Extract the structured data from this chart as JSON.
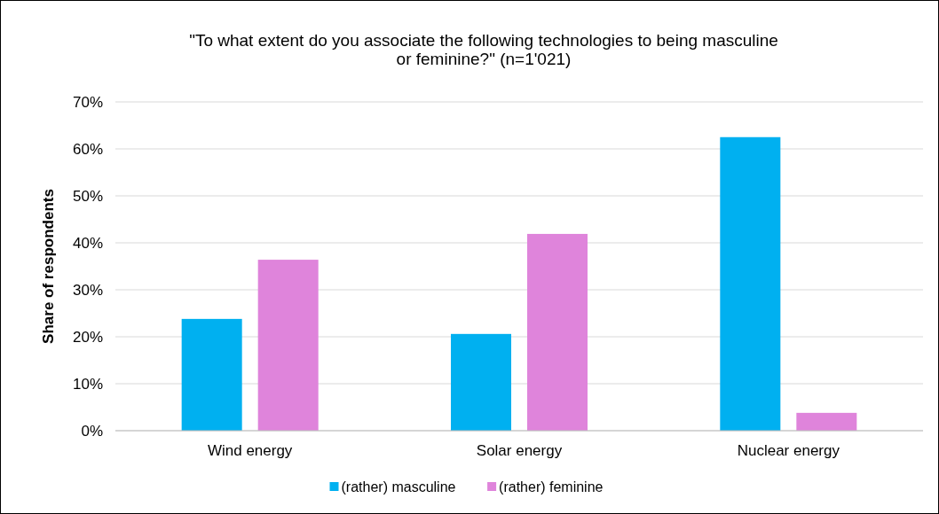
{
  "chart_data": {
    "type": "bar",
    "title": "\"To what extent do you associate the following technologies to being masculine or feminine?\" (n=1'021)",
    "ylabel": "Share of respondents",
    "categories": [
      "Wind energy",
      "Solar energy",
      "Nuclear energy"
    ],
    "series": [
      {
        "name": "(rather) masculine",
        "color": "#00b0f0",
        "values": [
          23.8,
          20.6,
          62.5
        ]
      },
      {
        "name": "(rather) feminine",
        "color": "#df84db",
        "values": [
          36.4,
          41.9,
          3.8
        ]
      }
    ],
    "ylim": [
      0,
      70
    ],
    "yticks": [
      {
        "value": 0,
        "label": "0%"
      },
      {
        "value": 10,
        "label": "10%"
      },
      {
        "value": 20,
        "label": "20%"
      },
      {
        "value": 30,
        "label": "30%"
      },
      {
        "value": 40,
        "label": "40%"
      },
      {
        "value": 50,
        "label": "50%"
      },
      {
        "value": 60,
        "label": "60%"
      },
      {
        "value": 70,
        "label": "70%"
      }
    ],
    "grid": "y",
    "legend": "bottom"
  }
}
